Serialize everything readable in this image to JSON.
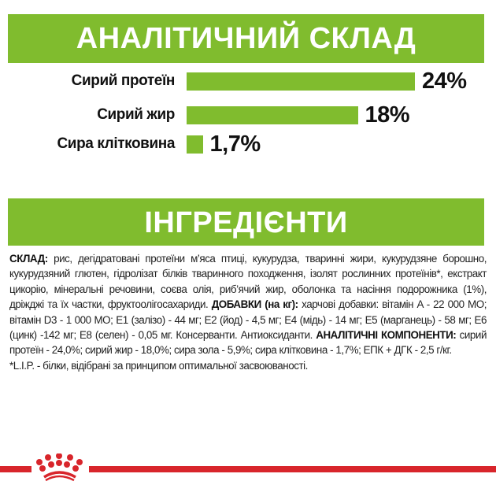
{
  "chart_data": {
    "type": "bar",
    "orientation": "horizontal",
    "title": "АНАЛІТИЧНИЙ СКЛАД",
    "categories": [
      "Сирий протеїн",
      "Сирий жир",
      "Сира клітковина"
    ],
    "values": [
      24,
      18,
      1.7
    ],
    "data_labels": [
      "24%",
      "18%",
      "1,7%"
    ],
    "bar_color": "#80bc2e",
    "grid": false
  },
  "ingredients": {
    "title": "ІНГРЕДІЄНТИ",
    "composition_label": "СКЛАД:",
    "composition_text": " рис, дегідратовані протеїни м’яса птиці, кукурудза, тваринні жири, кукурудзяне борошно, кукурудзяний глютен, гідролізат білків тваринного походження, ізолят рослинних протеїнів*, екстракт цикорію, мінеральні речовини, соєва олія, риб’ячий жир, оболонка та насіння подорожника (1%), дріжджі та їх частки, фруктоолігосахариди. ",
    "additives_label": "ДОБАВКИ (на кг):",
    "additives_text": " харчові добавки: вітамін A - 22 000 МО; вітамін D3 - 1 000 МО; E1 (залізо) - 44 мг; E2 (йод) - 4,5 мг; E4 (мідь) - 14 мг; E5 (марганець) - 58 мг; E6 (цинк) -142 мг; E8 (селен) - 0,05 мг. Консерванти. Антиоксиданти. ",
    "analytic_label": "АНАЛІТИЧНІ КОМПОНЕНТИ:",
    "analytic_text": " сирий протеїн - 24,0%; сирий жир - 18,0%; сира зола - 5,9%; сира клітковина - 1,7%; ЕПК + ДГК - 2,5 г/кг.",
    "footnote": "*L.I.P. - білки, відібрані за принципом оптимальної засвоюваності."
  },
  "brand": {
    "logo": "Royal Canin crown",
    "color": "#d8252b"
  }
}
